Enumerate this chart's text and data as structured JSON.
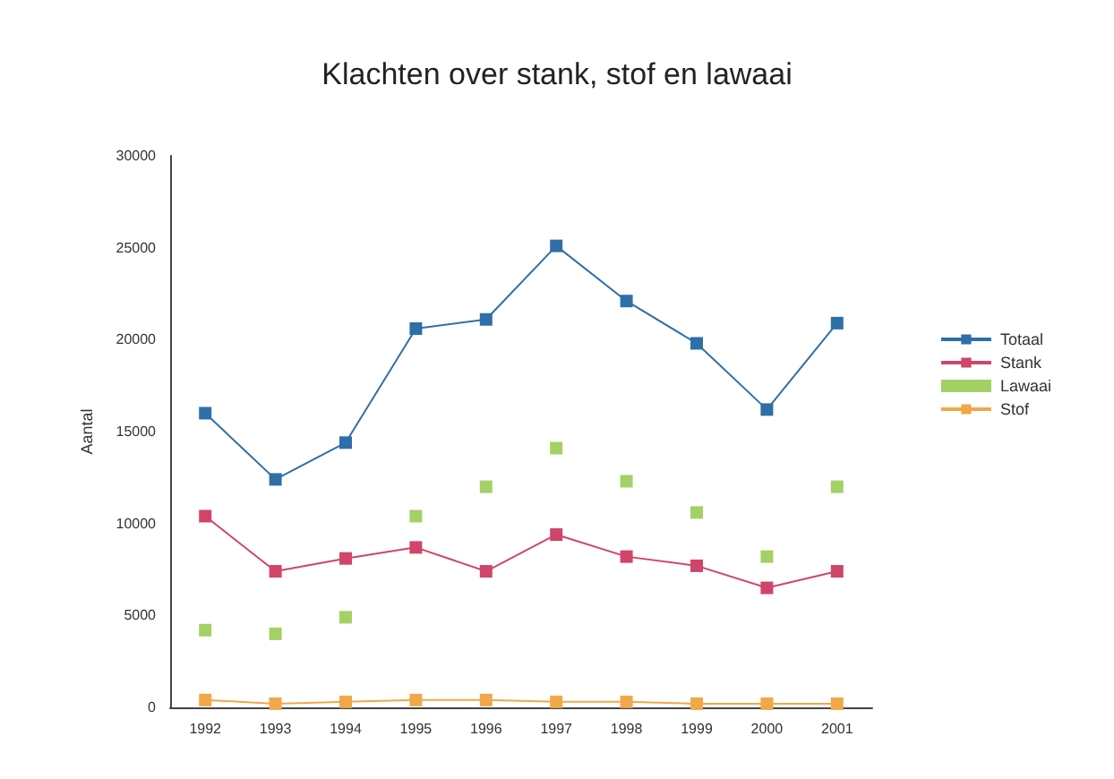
{
  "chart_data": {
    "type": "line",
    "title": "Klachten over stank, stof en lawaai",
    "ylabel": "Aantal",
    "categories": [
      "1992",
      "1993",
      "1994",
      "1995",
      "1996",
      "1997",
      "1998",
      "1999",
      "2000",
      "2001"
    ],
    "series": [
      {
        "name": "Totaal",
        "color": "#2f6fa8",
        "values": [
          16000,
          12400,
          14400,
          20600,
          21100,
          25100,
          22100,
          19800,
          16200,
          20900
        ]
      },
      {
        "name": "Stank",
        "color": "#d0456a",
        "values": [
          10400,
          7400,
          8100,
          8700,
          7400,
          9400,
          8200,
          7700,
          6500,
          7400
        ]
      },
      {
        "name": "Lawaai",
        "color": "#8cc63f",
        "type": "scatter",
        "values": [
          4200,
          4000,
          4900,
          10400,
          12000,
          14100,
          12300,
          10600,
          8200,
          12000
        ]
      },
      {
        "name": "Stof",
        "color": "#f0a848",
        "values": [
          400,
          200,
          300,
          400,
          400,
          300,
          300,
          200,
          200,
          200
        ]
      }
    ],
    "ylim": [
      0,
      30000
    ],
    "yticks": [
      0,
      5000,
      10000,
      15000,
      20000,
      25000,
      30000
    ],
    "grid": false,
    "legend": "right",
    "marker": "square"
  }
}
